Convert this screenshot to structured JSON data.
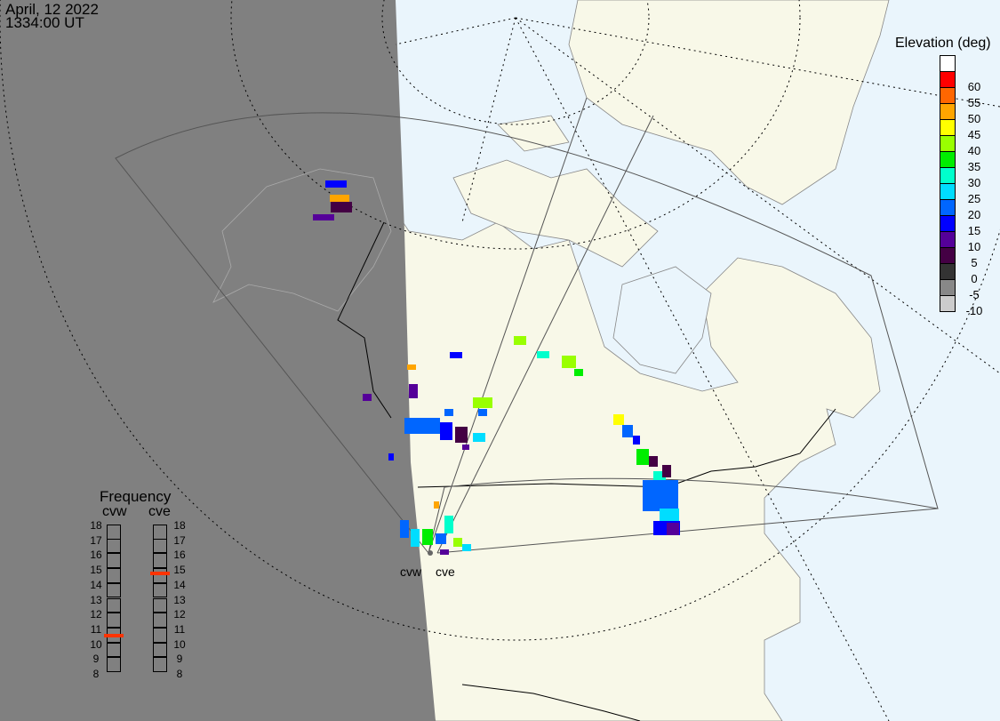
{
  "header": {
    "date": "April, 12 2022",
    "time": "1334:00 UT"
  },
  "legend": {
    "title": "Elevation (deg)",
    "levels": [
      {
        "label": "",
        "color": "#ffffff"
      },
      {
        "label": "60",
        "color": "#ff0000"
      },
      {
        "label": "55",
        "color": "#ff6600"
      },
      {
        "label": "50",
        "color": "#ffa500"
      },
      {
        "label": "45",
        "color": "#ffff00"
      },
      {
        "label": "40",
        "color": "#99ff00"
      },
      {
        "label": "35",
        "color": "#00ee00"
      },
      {
        "label": "30",
        "color": "#00ffcc"
      },
      {
        "label": "25",
        "color": "#00ddff"
      },
      {
        "label": "20",
        "color": "#0066ff"
      },
      {
        "label": "15",
        "color": "#0000ff"
      },
      {
        "label": "10",
        "color": "#550099"
      },
      {
        "label": "5",
        "color": "#440044"
      },
      {
        "label": "0",
        "color": "#333333"
      },
      {
        "label": "-5",
        "color": "#888888"
      },
      {
        "label": "-10",
        "color": "#cccccc"
      }
    ]
  },
  "frequency": {
    "title": "Frequency",
    "ticks": [
      "18",
      "17",
      "16",
      "15",
      "14",
      "13",
      "12",
      "11",
      "10",
      "9",
      "8"
    ],
    "radars": [
      {
        "name": "cvw",
        "mhz": 10.5,
        "marker_color": "#ff3300"
      },
      {
        "name": "cve",
        "mhz": 14.7,
        "marker_color": "#ff3300"
      }
    ]
  },
  "map": {
    "radar_labels": [
      "cvw",
      "cve"
    ],
    "night_color": "#808080",
    "land_color": "#f8f8e8",
    "ocean_color": "#eaf5fc"
  }
}
